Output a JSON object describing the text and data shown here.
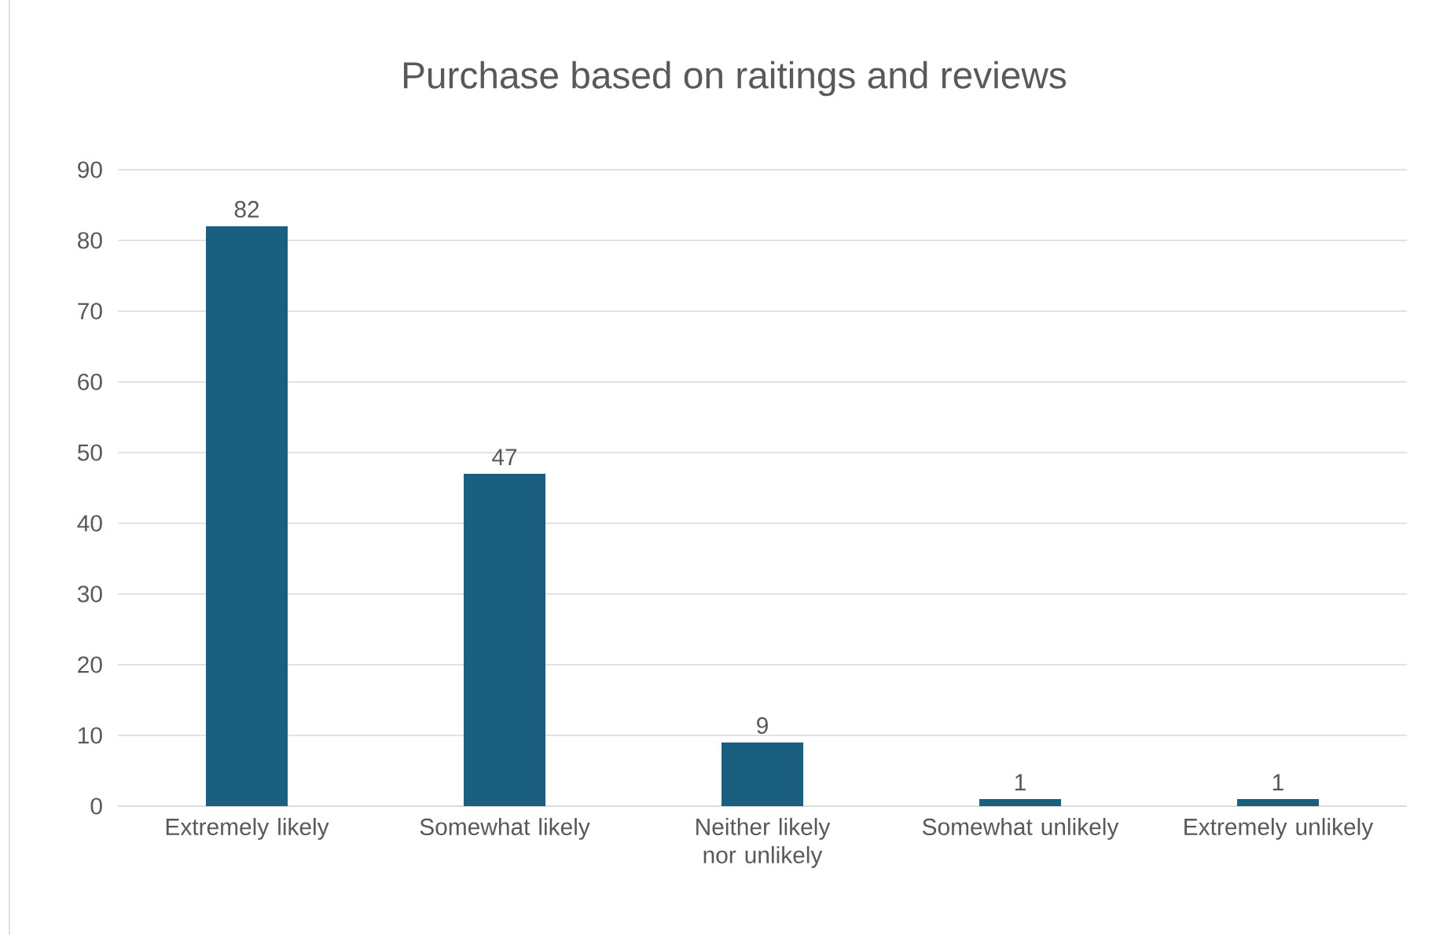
{
  "chart_data": {
    "type": "bar",
    "title": "Purchase based on raitings and reviews",
    "categories": [
      "Extremely likely",
      "Somewhat likely",
      "Neither likely nor unlikely",
      "Somewhat unlikely",
      "Extremely unlikely"
    ],
    "values": [
      82,
      47,
      9,
      1,
      1
    ],
    "color": "#1a5e80",
    "ylim": [
      0,
      90
    ],
    "yticks": [
      0,
      10,
      20,
      30,
      40,
      50,
      60,
      70,
      80,
      90
    ],
    "grid": "y",
    "data_labels": true
  }
}
